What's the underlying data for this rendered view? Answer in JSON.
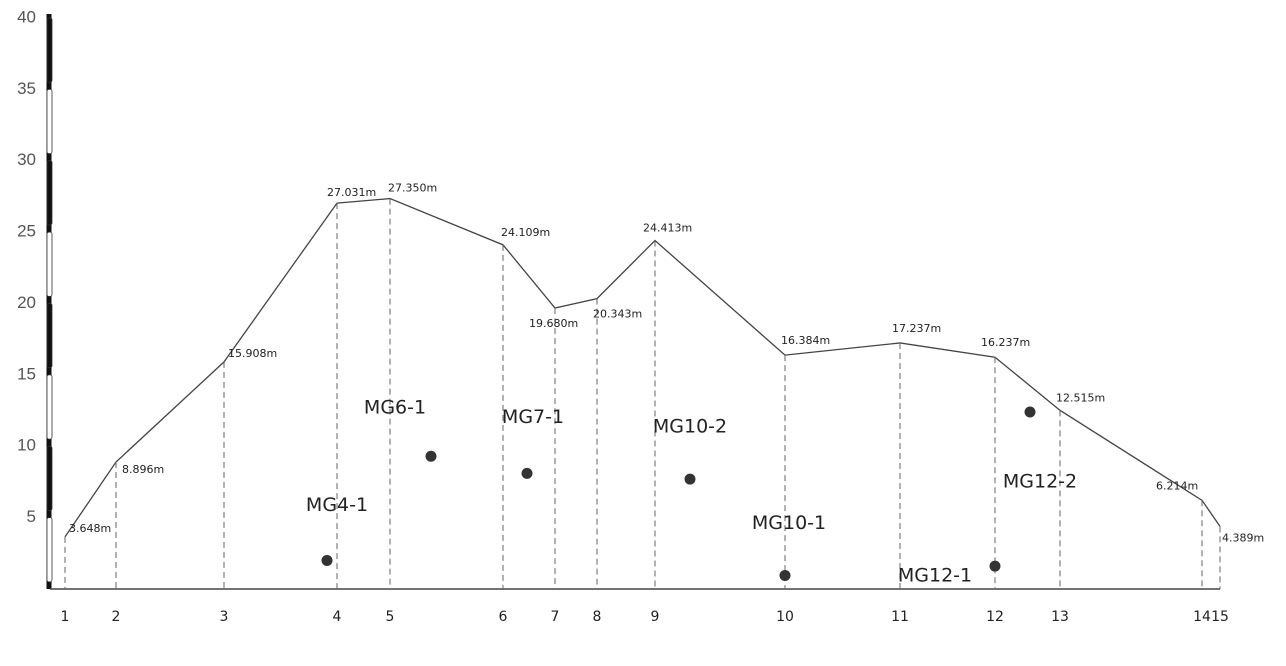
{
  "chart_data": {
    "type": "line",
    "stations": [
      "1",
      "2",
      "3",
      "4",
      "5",
      "6",
      "7",
      "8",
      "9",
      "10",
      "11",
      "12",
      "13",
      "14",
      "15"
    ],
    "x": [
      15,
      66,
      174,
      287,
      340,
      453,
      505,
      547,
      605,
      735,
      850,
      945,
      1010,
      1152,
      1170
    ],
    "values": [
      3.648,
      8.896,
      15.908,
      27.031,
      27.35,
      24.109,
      19.68,
      20.343,
      24.413,
      16.384,
      17.237,
      16.237,
      12.515,
      6.214,
      4.389
    ],
    "value_labels": [
      "3.648m",
      "8.896m",
      "15.908m",
      "27.031m",
      "27.350m",
      "24.109m",
      "19.680m",
      "20.343m",
      "24.413m",
      "16.384m",
      "17.237m",
      "16.237m",
      "12.515m",
      "6.214m",
      "4.389m"
    ],
    "color": "#444444",
    "xlim": [
      0,
      1170
    ],
    "ylim": [
      0,
      40
    ],
    "yticks": [
      5,
      10,
      15,
      20,
      25,
      30,
      35,
      40
    ],
    "boreholes": {
      "names": [
        "MG4-1",
        "MG6-1",
        "MG7-1",
        "MG10-2",
        "MG10-1",
        "MG12-1",
        "MG12-2"
      ],
      "x": [
        277,
        381,
        477,
        640,
        735,
        945,
        980
      ],
      "values": [
        2.0,
        9.3,
        8.1,
        7.7,
        0.95,
        1.6,
        12.4
      ],
      "color": "#333333"
    }
  }
}
